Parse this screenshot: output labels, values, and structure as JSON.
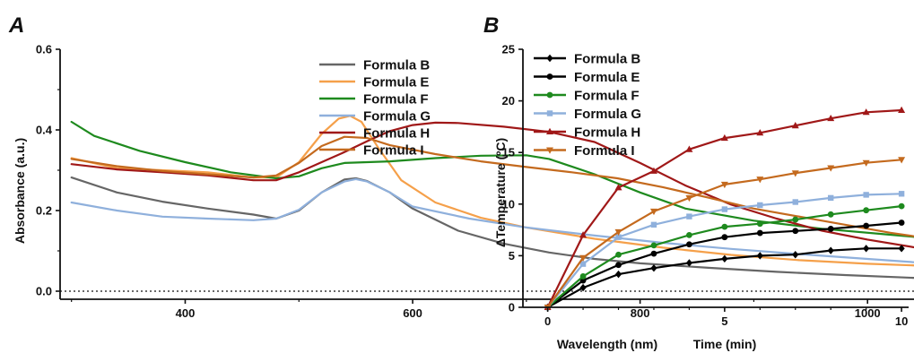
{
  "panels": [
    {
      "letter": "A",
      "chart_data": {
        "type": "line",
        "title": "",
        "xlabel": "Wavelength (nm)",
        "ylabel": "Absorbance (a.u.)",
        "xlim": [
          290,
          1100
        ],
        "ylim": [
          -0.02,
          0.6
        ],
        "xticks": [
          400,
          600,
          800,
          1000
        ],
        "yticks": [
          0.0,
          0.2,
          0.4,
          0.6
        ],
        "ytick_labels": [
          "0.0",
          "0.2",
          "0.4",
          "0.6"
        ],
        "baseline": 0.0,
        "grid": false,
        "legend": "top-right",
        "series": [
          {
            "name": "Formula B",
            "color": "#666666",
            "x": [
              300,
              340,
              380,
              420,
              460,
              480,
              500,
              520,
              540,
              550,
              560,
              580,
              600,
              640,
              680,
              720,
              760,
              800,
              860,
              920,
              980,
              1040,
              1080,
              1100
            ],
            "y": [
              0.282,
              0.245,
              0.222,
              0.205,
              0.19,
              0.18,
              0.2,
              0.245,
              0.277,
              0.28,
              0.273,
              0.245,
              0.205,
              0.15,
              0.118,
              0.096,
              0.08,
              0.069,
              0.058,
              0.048,
              0.04,
              0.033,
              0.028,
              0.03
            ]
          },
          {
            "name": "Formula E",
            "color": "#f5a04a",
            "x": [
              300,
              340,
              380,
              420,
              460,
              480,
              500,
              520,
              535,
              545,
              555,
              570,
              590,
              620,
              660,
              700,
              760,
              820,
              880,
              940,
              1000,
              1060,
              1100
            ],
            "y": [
              0.33,
              0.305,
              0.3,
              0.295,
              0.282,
              0.282,
              0.32,
              0.39,
              0.428,
              0.435,
              0.42,
              0.355,
              0.275,
              0.22,
              0.182,
              0.158,
              0.13,
              0.108,
              0.09,
              0.077,
              0.068,
              0.062,
              0.06
            ]
          },
          {
            "name": "Formula F",
            "color": "#1e8a1e",
            "x": [
              300,
              320,
              360,
              400,
              440,
              480,
              500,
              520,
              540,
              580,
              620,
              660,
              700,
              720,
              760,
              800,
              840,
              900,
              960,
              1020,
              1060,
              1100
            ],
            "y": [
              0.42,
              0.385,
              0.348,
              0.32,
              0.295,
              0.28,
              0.285,
              0.305,
              0.318,
              0.322,
              0.33,
              0.336,
              0.337,
              0.328,
              0.29,
              0.245,
              0.205,
              0.175,
              0.155,
              0.14,
              0.13,
              0.125
            ]
          },
          {
            "name": "Formula G",
            "color": "#8fb0dc",
            "x": [
              300,
              340,
              380,
              420,
              460,
              480,
              500,
              520,
              540,
              550,
              560,
              580,
              600,
              650,
              700,
              760,
              820,
              880,
              940,
              1000,
              1060,
              1100
            ],
            "y": [
              0.22,
              0.2,
              0.185,
              0.18,
              0.176,
              0.18,
              0.202,
              0.245,
              0.272,
              0.278,
              0.272,
              0.245,
              0.21,
              0.18,
              0.158,
              0.138,
              0.12,
              0.105,
              0.092,
              0.08,
              0.068,
              0.06
            ]
          },
          {
            "name": "Formula H",
            "color": "#a01818",
            "x": [
              300,
              340,
              380,
              420,
              460,
              480,
              500,
              520,
              540,
              560,
              580,
              600,
              620,
              640,
              680,
              720,
              760,
              800,
              840,
              880,
              920,
              960,
              1000,
              1060,
              1100
            ],
            "y": [
              0.315,
              0.302,
              0.295,
              0.287,
              0.275,
              0.275,
              0.295,
              0.32,
              0.345,
              0.372,
              0.397,
              0.412,
              0.418,
              0.417,
              0.408,
              0.395,
              0.37,
              0.318,
              0.262,
              0.215,
              0.18,
              0.15,
              0.128,
              0.1,
              0.085
            ]
          },
          {
            "name": "Formula I",
            "color": "#c46a1e",
            "x": [
              300,
              340,
              380,
              420,
              460,
              480,
              500,
              520,
              540,
              560,
              580,
              620,
              660,
              700,
              740,
              780,
              820,
              860,
              900,
              960,
              1020,
              1080,
              1100
            ],
            "y": [
              0.328,
              0.31,
              0.298,
              0.29,
              0.282,
              0.287,
              0.318,
              0.36,
              0.383,
              0.38,
              0.362,
              0.34,
              0.322,
              0.308,
              0.295,
              0.28,
              0.258,
              0.232,
              0.205,
              0.175,
              0.145,
              0.12,
              0.115
            ]
          }
        ]
      }
    },
    {
      "letter": "B",
      "chart_data": {
        "type": "line",
        "title": "",
        "xlabel": "Time (min)",
        "ylabel": "ΔTemperature (ºC)",
        "xlim": [
          -0.7,
          10.2
        ],
        "ylim": [
          0,
          25
        ],
        "xticks": [
          0,
          5,
          10
        ],
        "yticks": [
          0,
          5,
          10,
          15,
          20,
          25
        ],
        "grid": false,
        "legend": "top-left",
        "series": [
          {
            "name": "Formula B",
            "color": "#000000",
            "marker": "diamond",
            "x": [
              0,
              1,
              2,
              3,
              4,
              5,
              6,
              7,
              8,
              9,
              10
            ],
            "y": [
              0,
              1.9,
              3.2,
              3.8,
              4.3,
              4.7,
              5.0,
              5.1,
              5.5,
              5.7,
              5.7
            ]
          },
          {
            "name": "Formula E",
            "color": "#000000",
            "marker": "circle",
            "x": [
              0,
              1,
              2,
              3,
              4,
              5,
              6,
              7,
              8,
              9,
              10
            ],
            "y": [
              0,
              2.6,
              4.1,
              5.2,
              6.1,
              6.8,
              7.2,
              7.4,
              7.6,
              7.9,
              8.2
            ]
          },
          {
            "name": "Formula F",
            "color": "#1e8a1e",
            "marker": "circle",
            "x": [
              0,
              1,
              2,
              3,
              4,
              5,
              6,
              7,
              8,
              9,
              10
            ],
            "y": [
              0,
              3.0,
              5.1,
              6.0,
              7.0,
              7.8,
              8.1,
              8.5,
              9.0,
              9.4,
              9.8
            ]
          },
          {
            "name": "Formula G",
            "color": "#8fb0dc",
            "marker": "square",
            "x": [
              0,
              1,
              2,
              3,
              4,
              5,
              6,
              7,
              8,
              9,
              10
            ],
            "y": [
              0,
              4.2,
              6.8,
              8.0,
              8.8,
              9.5,
              9.9,
              10.2,
              10.6,
              10.9,
              11.0
            ]
          },
          {
            "name": "Formula H",
            "color": "#a01818",
            "marker": "triangle-up",
            "x": [
              0,
              1,
              2,
              3,
              4,
              5,
              6,
              7,
              8,
              9,
              10
            ],
            "y": [
              0,
              7.0,
              11.6,
              13.2,
              15.3,
              16.4,
              16.9,
              17.6,
              18.3,
              18.9,
              19.1
            ]
          },
          {
            "name": "Formula I",
            "color": "#c46a1e",
            "marker": "triangle-down",
            "x": [
              0,
              1,
              2,
              3,
              4,
              5,
              6,
              7,
              8,
              9,
              10
            ],
            "y": [
              0,
              4.8,
              7.3,
              9.3,
              10.6,
              11.9,
              12.4,
              13.0,
              13.5,
              14.0,
              14.3
            ]
          }
        ]
      }
    }
  ]
}
